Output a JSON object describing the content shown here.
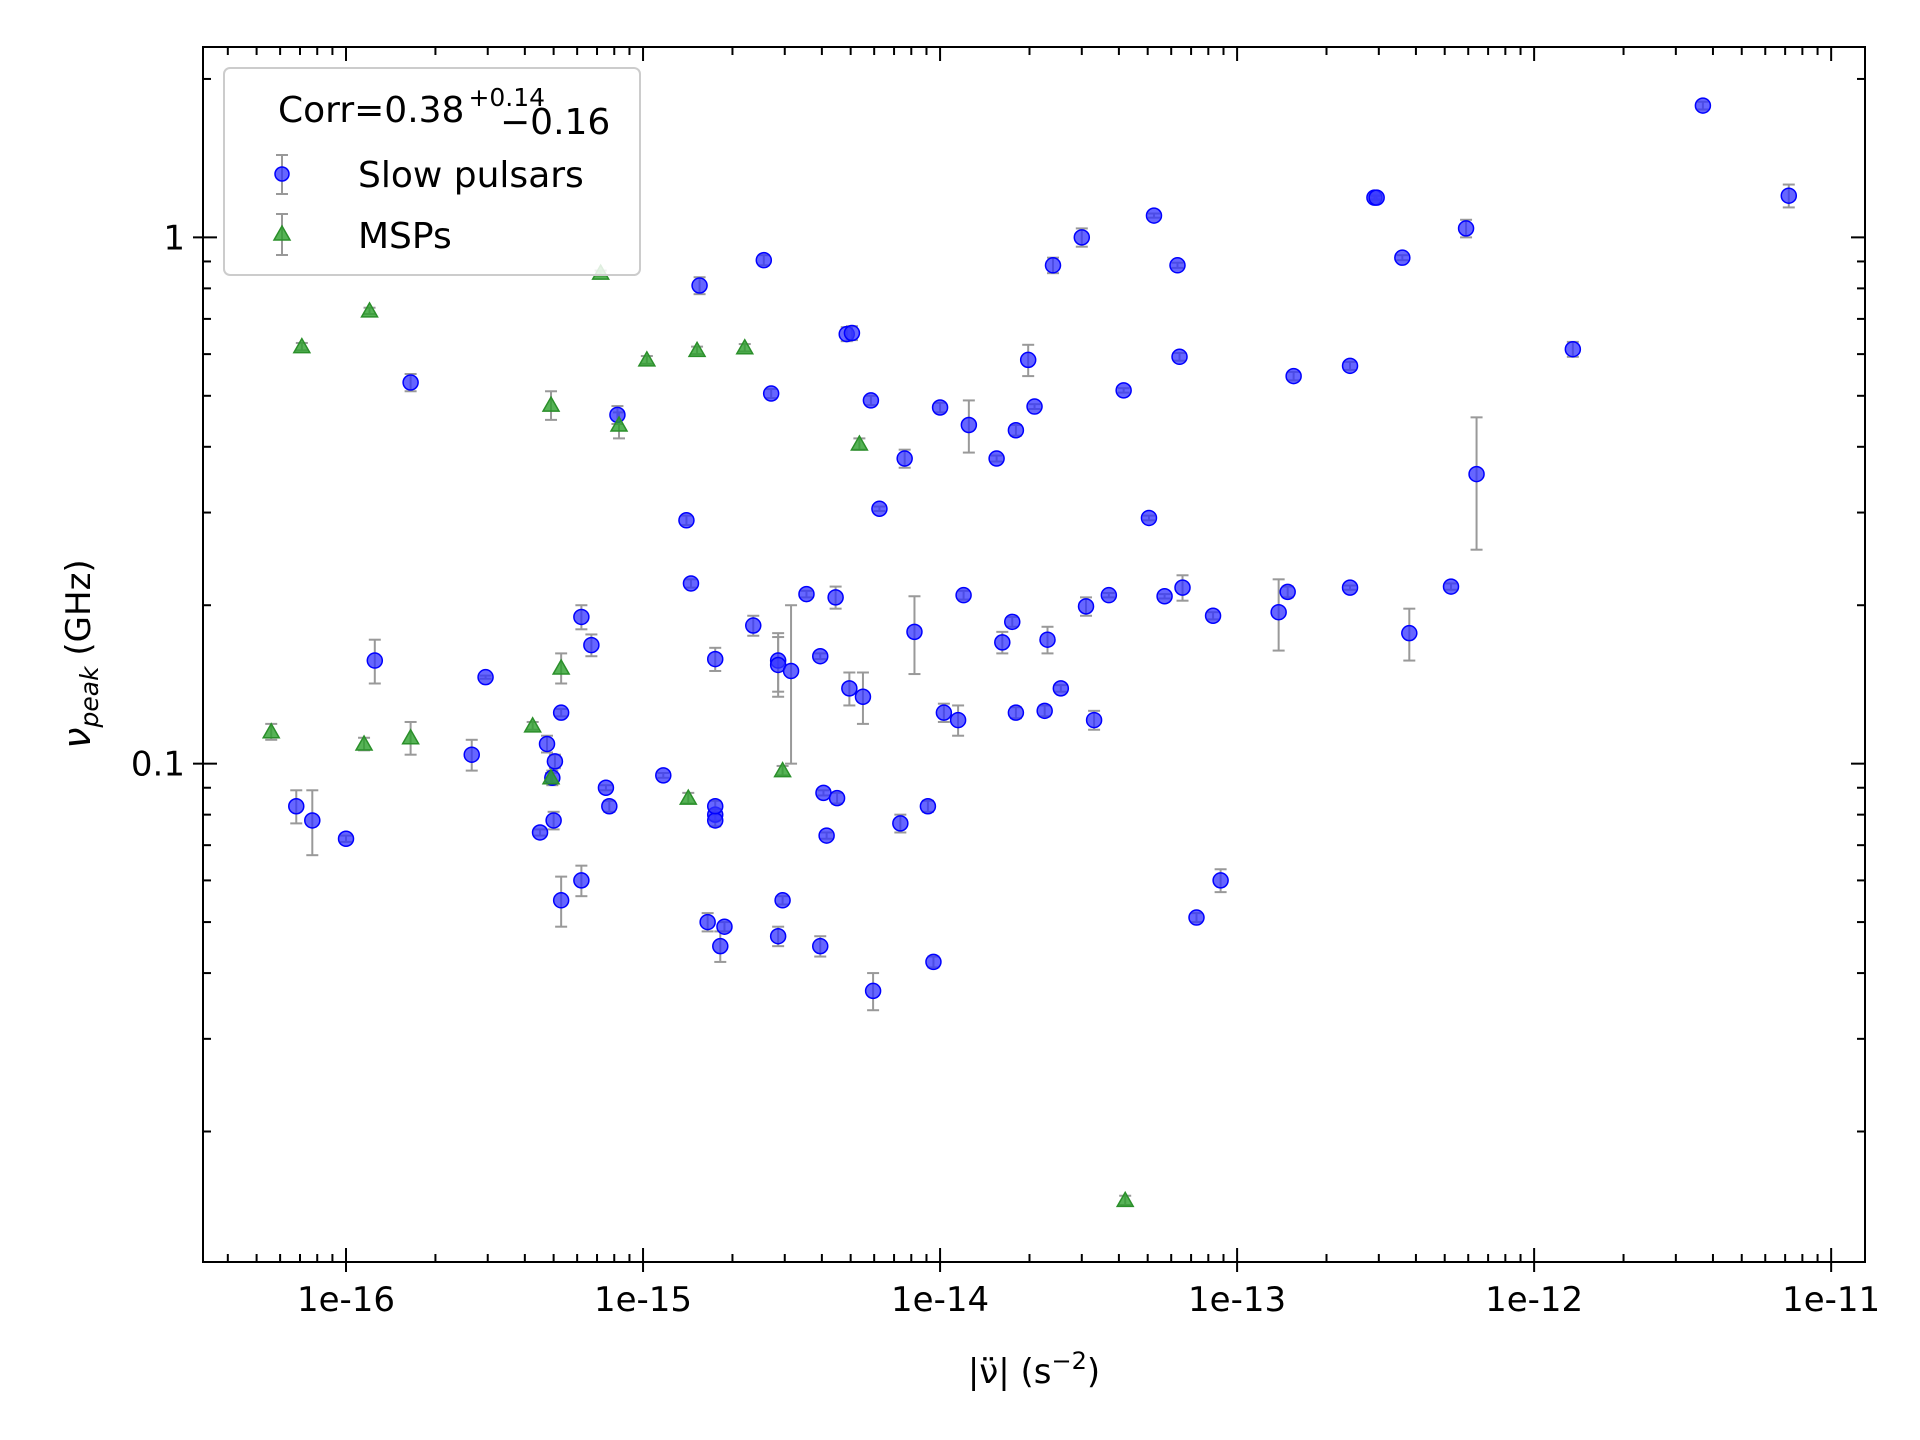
{
  "chart_data": {
    "type": "scatter",
    "xlabel": "|ν̈| (s⁻²)",
    "ylabel": "ν_peak (GHz)",
    "xscale": "log",
    "yscale": "log",
    "xlim": [
      3.3e-17,
      1.3e-11
    ],
    "ylim": [
      0.0113,
      2.3
    ],
    "xticks": [
      {
        "value": 1e-16,
        "label": "1e-16"
      },
      {
        "value": 1e-15,
        "label": "1e-15"
      },
      {
        "value": 1e-14,
        "label": "1e-14"
      },
      {
        "value": 1e-13,
        "label": "1e-13"
      },
      {
        "value": 1e-12,
        "label": "1e-12"
      },
      {
        "value": 1e-11,
        "label": "1e-11"
      }
    ],
    "yticks": [
      {
        "value": 0.1,
        "label": "0.1"
      },
      {
        "value": 1,
        "label": "1"
      }
    ],
    "grid": false,
    "legend": {
      "placement": "top-left",
      "title_main": "Corr=0.38",
      "title_sup": "+0.14",
      "title_sub": "−0.16"
    },
    "series": [
      {
        "name": "Slow pulsars",
        "marker": "circle",
        "color": "#3333ff",
        "points": [
          [
            6.8e-17,
            0.083,
            0.006
          ],
          [
            7.7e-17,
            0.078,
            0.011
          ],
          [
            1e-16,
            0.072,
            0.001
          ],
          [
            1.65e-16,
            0.53,
            0.02
          ],
          [
            1.25e-16,
            0.157,
            0.015
          ],
          [
            2.65e-16,
            0.104,
            0.007
          ],
          [
            2.95e-16,
            0.146,
            0.001
          ],
          [
            4.5e-16,
            0.074,
            0.001
          ],
          [
            4.75e-16,
            0.109,
            0.004
          ],
          [
            4.95e-16,
            0.094,
            0.003
          ],
          [
            5.05e-16,
            0.101,
            0.003
          ],
          [
            5e-16,
            0.078,
            0.003
          ],
          [
            5.3e-16,
            0.125,
            0.002
          ],
          [
            5.3e-16,
            0.055,
            0.006
          ],
          [
            6.2e-16,
            0.19,
            0.01
          ],
          [
            6.2e-16,
            0.06,
            0.004
          ],
          [
            6.7e-16,
            0.168,
            0.008
          ],
          [
            7.5e-16,
            0.09,
            0.001
          ],
          [
            7.7e-16,
            0.083,
            0.002
          ],
          [
            8.2e-16,
            0.46,
            0.018
          ],
          [
            1.17e-15,
            0.095,
            0.001
          ],
          [
            1.4e-15,
            0.29,
            0.006
          ],
          [
            1.45e-15,
            0.22,
            0.004
          ],
          [
            1.55e-15,
            0.81,
            0.03
          ],
          [
            1.65e-15,
            0.05,
            0.002
          ],
          [
            1.75e-15,
            0.158,
            0.008
          ],
          [
            1.75e-15,
            0.08,
            0.002
          ],
          [
            1.75e-15,
            0.078,
            0.002
          ],
          [
            1.75e-15,
            0.083,
            0.002
          ],
          [
            1.82e-15,
            0.045,
            0.003
          ],
          [
            1.88e-15,
            0.049,
            0.001
          ],
          [
            2.35e-15,
            0.183,
            0.008
          ],
          [
            2.55e-15,
            0.905,
            0.02
          ],
          [
            2.7e-15,
            0.505,
            0.01
          ],
          [
            2.85e-15,
            0.157,
            0.02
          ],
          [
            2.85e-15,
            0.154,
            0.02
          ],
          [
            2.85e-15,
            0.047,
            0.002
          ],
          [
            2.95e-15,
            0.055,
            0.001
          ],
          [
            3.15e-15,
            0.15,
            0.05
          ],
          [
            3.55e-15,
            0.21,
            0.003
          ],
          [
            3.95e-15,
            0.16,
            0.002
          ],
          [
            3.95e-15,
            0.045,
            0.002
          ],
          [
            4.05e-15,
            0.088,
            0.001
          ],
          [
            4.15e-15,
            0.073,
            0.001
          ],
          [
            4.45e-15,
            0.207,
            0.01
          ],
          [
            4.5e-15,
            0.086,
            0.002
          ],
          [
            4.85e-15,
            0.655,
            0.02
          ],
          [
            5.05e-15,
            0.658,
            0.02
          ],
          [
            4.95e-15,
            0.139,
            0.01
          ],
          [
            5.5e-15,
            0.134,
            0.015
          ],
          [
            5.85e-15,
            0.49,
            0.01
          ],
          [
            5.95e-15,
            0.037,
            0.003
          ],
          [
            6.25e-15,
            0.305,
            0.003
          ],
          [
            7.35e-15,
            0.077,
            0.003
          ],
          [
            7.6e-15,
            0.38,
            0.015
          ],
          [
            8.2e-15,
            0.178,
            0.03
          ],
          [
            9.1e-15,
            0.083,
            0.002
          ],
          [
            9.5e-15,
            0.042,
            0.001
          ],
          [
            1e-14,
            0.475,
            0.01
          ],
          [
            1.03e-14,
            0.125,
            0.005
          ],
          [
            1.15e-14,
            0.121,
            0.008
          ],
          [
            1.2e-14,
            0.209,
            0.004
          ],
          [
            1.25e-14,
            0.44,
            0.05
          ],
          [
            1.55e-14,
            0.38,
            0.005
          ],
          [
            1.62e-14,
            0.17,
            0.008
          ],
          [
            1.75e-14,
            0.186,
            0.004
          ],
          [
            1.8e-14,
            0.43,
            0.01
          ],
          [
            1.8e-14,
            0.125,
            0.003
          ],
          [
            1.98e-14,
            0.585,
            0.04
          ],
          [
            2.08e-14,
            0.477,
            0.005
          ],
          [
            2.25e-14,
            0.126,
            0.003
          ],
          [
            2.3e-14,
            0.172,
            0.01
          ],
          [
            2.4e-14,
            0.885,
            0.03
          ],
          [
            2.55e-14,
            0.139,
            0.002
          ],
          [
            3e-14,
            1.0,
            0.04
          ],
          [
            3.1e-14,
            0.199,
            0.008
          ],
          [
            3.3e-14,
            0.121,
            0.005
          ],
          [
            3.7e-14,
            0.209,
            0.002
          ],
          [
            4.15e-14,
            0.512,
            0.005
          ],
          [
            5.05e-14,
            0.293,
            0.003
          ],
          [
            5.25e-14,
            1.1,
            0.01
          ],
          [
            5.7e-14,
            0.208,
            0.002
          ],
          [
            6.3e-14,
            0.885,
            0.01
          ],
          [
            6.4e-14,
            0.593,
            0.01
          ],
          [
            6.55e-14,
            0.216,
            0.012
          ],
          [
            7.3e-14,
            0.051,
            0.001
          ],
          [
            8.3e-14,
            0.191,
            0.003
          ],
          [
            8.8e-14,
            0.06,
            0.003
          ],
          [
            1.38e-13,
            0.194,
            0.03
          ],
          [
            1.48e-13,
            0.212,
            0.005
          ],
          [
            1.55e-13,
            0.545,
            0.01
          ],
          [
            2.4e-13,
            0.216,
            0.002
          ],
          [
            2.4e-13,
            0.57,
            0.01
          ],
          [
            2.9e-13,
            1.19,
            0.01
          ],
          [
            2.95e-13,
            1.19,
            0.01
          ],
          [
            3.6e-13,
            0.915,
            0.01
          ],
          [
            3.8e-13,
            0.177,
            0.02
          ],
          [
            5.25e-13,
            0.217,
            0.003
          ],
          [
            5.9e-13,
            1.04,
            0.04
          ],
          [
            6.4e-13,
            0.355,
            0.1
          ],
          [
            1.35e-12,
            0.613,
            0.02
          ],
          [
            3.7e-12,
            1.78,
            0.03
          ],
          [
            7.2e-12,
            1.2,
            0.06
          ]
        ]
      },
      {
        "name": "MSPs",
        "marker": "triangle",
        "color": "#2ca02c",
        "points": [
          [
            5.6e-17,
            0.115,
            0.004
          ],
          [
            7.1e-17,
            0.62,
            0.01
          ],
          [
            1.15e-16,
            0.109,
            0.003
          ],
          [
            1.2e-16,
            0.725,
            0.01
          ],
          [
            1.65e-16,
            0.112,
            0.008
          ],
          [
            4.25e-16,
            0.118,
            0.002
          ],
          [
            4.9e-16,
            0.48,
            0.03
          ],
          [
            4.9e-16,
            0.094,
            0.002
          ],
          [
            5.3e-16,
            0.152,
            0.01
          ],
          [
            7.2e-16,
            0.855,
            0.01
          ],
          [
            8.3e-16,
            0.44,
            0.025
          ],
          [
            1.03e-15,
            0.585,
            0.01
          ],
          [
            1.42e-15,
            0.086,
            0.002
          ],
          [
            1.52e-15,
            0.61,
            0.01
          ],
          [
            2.2e-15,
            0.617,
            0.01
          ],
          [
            2.95e-15,
            0.097,
            0.002
          ],
          [
            5.35e-15,
            0.405,
            0.01
          ],
          [
            4.2e-14,
            0.0148,
            0.0003
          ]
        ]
      }
    ]
  }
}
